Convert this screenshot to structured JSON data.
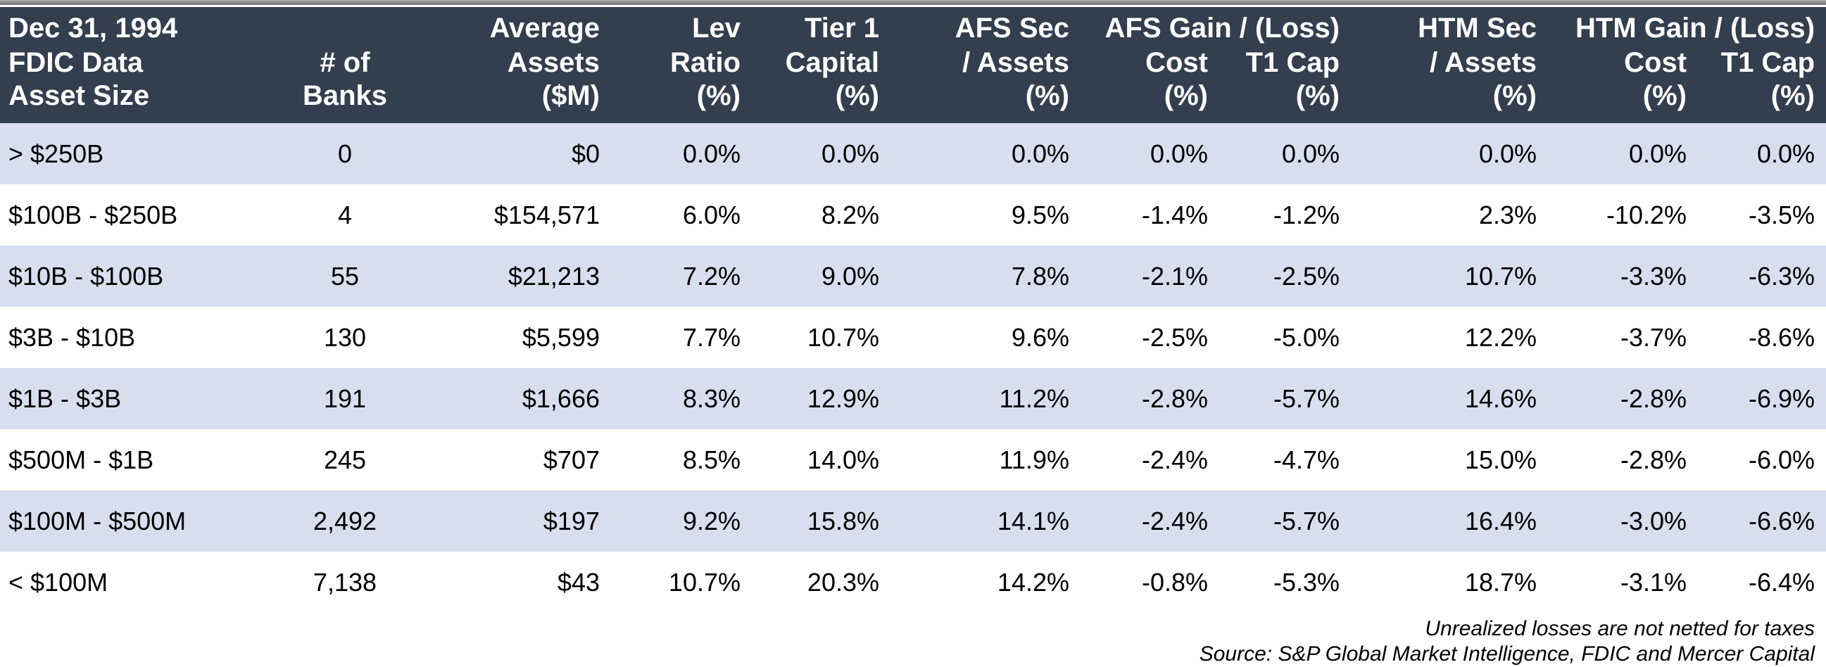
{
  "chart_data": {
    "type": "table",
    "title_lines": [
      "Dec 31, 1994",
      "FDIC Data",
      "Asset Size"
    ],
    "columns": [
      "Asset Size",
      "# of Banks",
      "Average Assets ($M)",
      "Lev Ratio (%)",
      "Tier 1 Capital (%)",
      "AFS Sec / Assets (%)",
      "AFS Gain / (Loss) Cost (%)",
      "AFS Gain / (Loss) T1 Cap (%)",
      "HTM Sec / Assets (%)",
      "HTM Gain / (Loss) Cost (%)",
      "HTM Gain / (Loss) T1 Cap (%)"
    ],
    "header_rows": {
      "r1": [
        "Dec 31, 1994",
        "",
        "Average",
        "Lev",
        "Tier 1",
        "AFS Sec",
        "AFS Gain / (Loss)",
        "HTM Sec",
        "HTM Gain / (Loss)"
      ],
      "r2": [
        "FDIC Data",
        "# of",
        "Assets",
        "Ratio",
        "Capital",
        "/ Assets",
        "Cost",
        "T1 Cap",
        "/ Assets",
        "Cost",
        "T1 Cap"
      ],
      "r3": [
        "Asset Size",
        "Banks",
        "($M)",
        "(%)",
        "(%)",
        "(%)",
        "(%)",
        "(%)",
        "(%)",
        "(%)",
        "(%)"
      ]
    },
    "rows": [
      [
        "> $250B",
        "0",
        "$0",
        "0.0%",
        "0.0%",
        "0.0%",
        "0.0%",
        "0.0%",
        "0.0%",
        "0.0%",
        "0.0%"
      ],
      [
        "$100B - $250B",
        "4",
        "$154,571",
        "6.0%",
        "8.2%",
        "9.5%",
        "-1.4%",
        "-1.2%",
        "2.3%",
        "-10.2%",
        "-3.5%"
      ],
      [
        "$10B - $100B",
        "55",
        "$21,213",
        "7.2%",
        "9.0%",
        "7.8%",
        "-2.1%",
        "-2.5%",
        "10.7%",
        "-3.3%",
        "-6.3%"
      ],
      [
        "$3B - $10B",
        "130",
        "$5,599",
        "7.7%",
        "10.7%",
        "9.6%",
        "-2.5%",
        "-5.0%",
        "12.2%",
        "-3.7%",
        "-8.6%"
      ],
      [
        "$1B - $3B",
        "191",
        "$1,666",
        "8.3%",
        "12.9%",
        "11.2%",
        "-2.8%",
        "-5.7%",
        "14.6%",
        "-2.8%",
        "-6.9%"
      ],
      [
        "$500M - $1B",
        "245",
        "$707",
        "8.5%",
        "14.0%",
        "11.9%",
        "-2.4%",
        "-4.7%",
        "15.0%",
        "-2.8%",
        "-6.0%"
      ],
      [
        "$100M - $500M",
        "2,492",
        "$197",
        "9.2%",
        "15.8%",
        "14.1%",
        "-2.4%",
        "-5.7%",
        "16.4%",
        "-3.0%",
        "-6.6%"
      ],
      [
        "< $100M",
        "7,138",
        "$43",
        "10.7%",
        "20.3%",
        "14.2%",
        "-0.8%",
        "-5.3%",
        "18.7%",
        "-3.1%",
        "-6.4%"
      ]
    ],
    "footnotes": [
      "Unrealized losses are not netted for taxes",
      "Source: S&P Global Market Intelligence, FDIC and Mercer Capital"
    ],
    "layout": {
      "grid": false,
      "row_striping": "alternating",
      "striped_rows": "odd"
    }
  },
  "colors": {
    "header_bg": "#333E4E",
    "header_text": "#FFFFFF",
    "stripe_row_bg": "#D9DEEF",
    "plain_row_bg": "#FFFFFF",
    "body_text": "#000000",
    "top_rule": "#8A8A8A"
  }
}
